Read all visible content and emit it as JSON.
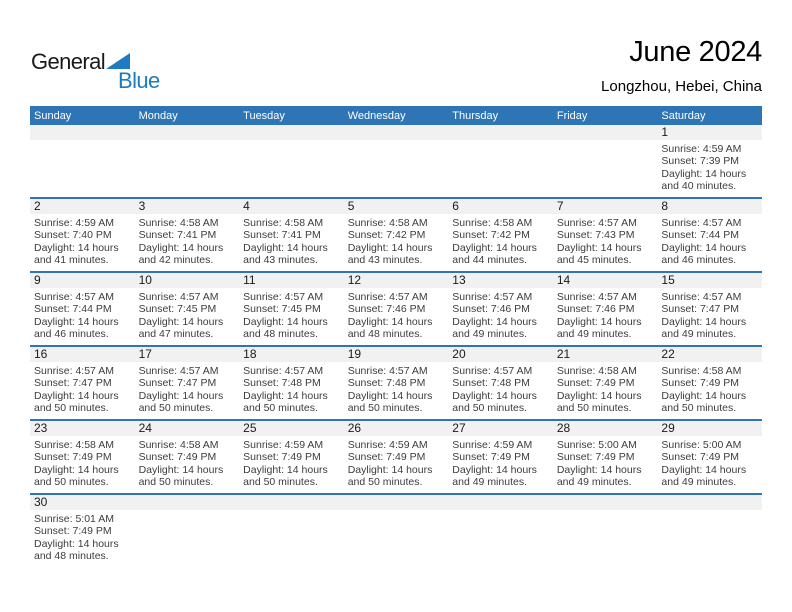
{
  "logo": {
    "word1": "General",
    "word2": "Blue",
    "triangle_icon": "blue-right-triangle"
  },
  "header": {
    "title": "June 2024",
    "location": "Longzhou, Hebei, China"
  },
  "colors": {
    "accent": "#2e75b6",
    "band": "#f1f1f1",
    "logo_blue": "#1f7bc0",
    "header_text": "#ffffff",
    "detail_text": "#3d3d3d"
  },
  "weekdays": [
    "Sunday",
    "Monday",
    "Tuesday",
    "Wednesday",
    "Thursday",
    "Friday",
    "Saturday"
  ],
  "labels": {
    "sunrise": "Sunrise:",
    "sunset": "Sunset:",
    "daylight": "Daylight:"
  },
  "weeks": [
    {
      "cells": [
        {
          "day": ""
        },
        {
          "day": ""
        },
        {
          "day": ""
        },
        {
          "day": ""
        },
        {
          "day": ""
        },
        {
          "day": ""
        },
        {
          "day": "1",
          "sunrise": "4:59 AM",
          "sunset": "7:39 PM",
          "daylight": "14 hours and 40 minutes."
        }
      ]
    },
    {
      "cells": [
        {
          "day": "2",
          "sunrise": "4:59 AM",
          "sunset": "7:40 PM",
          "daylight": "14 hours and 41 minutes."
        },
        {
          "day": "3",
          "sunrise": "4:58 AM",
          "sunset": "7:41 PM",
          "daylight": "14 hours and 42 minutes."
        },
        {
          "day": "4",
          "sunrise": "4:58 AM",
          "sunset": "7:41 PM",
          "daylight": "14 hours and 43 minutes."
        },
        {
          "day": "5",
          "sunrise": "4:58 AM",
          "sunset": "7:42 PM",
          "daylight": "14 hours and 43 minutes."
        },
        {
          "day": "6",
          "sunrise": "4:58 AM",
          "sunset": "7:42 PM",
          "daylight": "14 hours and 44 minutes."
        },
        {
          "day": "7",
          "sunrise": "4:57 AM",
          "sunset": "7:43 PM",
          "daylight": "14 hours and 45 minutes."
        },
        {
          "day": "8",
          "sunrise": "4:57 AM",
          "sunset": "7:44 PM",
          "daylight": "14 hours and 46 minutes."
        }
      ]
    },
    {
      "cells": [
        {
          "day": "9",
          "sunrise": "4:57 AM",
          "sunset": "7:44 PM",
          "daylight": "14 hours and 46 minutes."
        },
        {
          "day": "10",
          "sunrise": "4:57 AM",
          "sunset": "7:45 PM",
          "daylight": "14 hours and 47 minutes."
        },
        {
          "day": "11",
          "sunrise": "4:57 AM",
          "sunset": "7:45 PM",
          "daylight": "14 hours and 48 minutes."
        },
        {
          "day": "12",
          "sunrise": "4:57 AM",
          "sunset": "7:46 PM",
          "daylight": "14 hours and 48 minutes."
        },
        {
          "day": "13",
          "sunrise": "4:57 AM",
          "sunset": "7:46 PM",
          "daylight": "14 hours and 49 minutes."
        },
        {
          "day": "14",
          "sunrise": "4:57 AM",
          "sunset": "7:46 PM",
          "daylight": "14 hours and 49 minutes."
        },
        {
          "day": "15",
          "sunrise": "4:57 AM",
          "sunset": "7:47 PM",
          "daylight": "14 hours and 49 minutes."
        }
      ]
    },
    {
      "cells": [
        {
          "day": "16",
          "sunrise": "4:57 AM",
          "sunset": "7:47 PM",
          "daylight": "14 hours and 50 minutes."
        },
        {
          "day": "17",
          "sunrise": "4:57 AM",
          "sunset": "7:47 PM",
          "daylight": "14 hours and 50 minutes."
        },
        {
          "day": "18",
          "sunrise": "4:57 AM",
          "sunset": "7:48 PM",
          "daylight": "14 hours and 50 minutes."
        },
        {
          "day": "19",
          "sunrise": "4:57 AM",
          "sunset": "7:48 PM",
          "daylight": "14 hours and 50 minutes."
        },
        {
          "day": "20",
          "sunrise": "4:57 AM",
          "sunset": "7:48 PM",
          "daylight": "14 hours and 50 minutes."
        },
        {
          "day": "21",
          "sunrise": "4:58 AM",
          "sunset": "7:49 PM",
          "daylight": "14 hours and 50 minutes."
        },
        {
          "day": "22",
          "sunrise": "4:58 AM",
          "sunset": "7:49 PM",
          "daylight": "14 hours and 50 minutes."
        }
      ]
    },
    {
      "cells": [
        {
          "day": "23",
          "sunrise": "4:58 AM",
          "sunset": "7:49 PM",
          "daylight": "14 hours and 50 minutes."
        },
        {
          "day": "24",
          "sunrise": "4:58 AM",
          "sunset": "7:49 PM",
          "daylight": "14 hours and 50 minutes."
        },
        {
          "day": "25",
          "sunrise": "4:59 AM",
          "sunset": "7:49 PM",
          "daylight": "14 hours and 50 minutes."
        },
        {
          "day": "26",
          "sunrise": "4:59 AM",
          "sunset": "7:49 PM",
          "daylight": "14 hours and 50 minutes."
        },
        {
          "day": "27",
          "sunrise": "4:59 AM",
          "sunset": "7:49 PM",
          "daylight": "14 hours and 49 minutes."
        },
        {
          "day": "28",
          "sunrise": "5:00 AM",
          "sunset": "7:49 PM",
          "daylight": "14 hours and 49 minutes."
        },
        {
          "day": "29",
          "sunrise": "5:00 AM",
          "sunset": "7:49 PM",
          "daylight": "14 hours and 49 minutes."
        }
      ]
    },
    {
      "cells": [
        {
          "day": "30",
          "sunrise": "5:01 AM",
          "sunset": "7:49 PM",
          "daylight": "14 hours and 48 minutes."
        },
        {
          "day": ""
        },
        {
          "day": ""
        },
        {
          "day": ""
        },
        {
          "day": ""
        },
        {
          "day": ""
        },
        {
          "day": ""
        }
      ]
    }
  ]
}
